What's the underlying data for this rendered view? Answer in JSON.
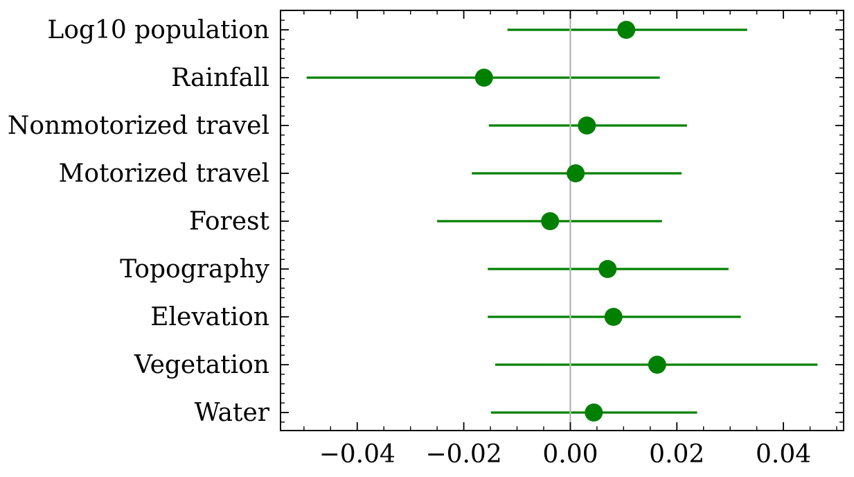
{
  "chart_data": {
    "type": "forest",
    "orientation": "horizontal",
    "title": "",
    "xlabel": "",
    "ylabel": "",
    "categories": [
      "Log10 population",
      "Rainfall",
      "Nonmotorized travel",
      "Motorized travel",
      "Forest",
      "Topography",
      "Elevation",
      "Vegetation",
      "Water"
    ],
    "estimates": [
      0.0105,
      -0.0162,
      0.0031,
      0.001,
      -0.0038,
      0.007,
      0.0081,
      0.0163,
      0.0044
    ],
    "ci_lower": [
      -0.0118,
      -0.0495,
      -0.0153,
      -0.0185,
      -0.025,
      -0.0155,
      -0.0155,
      -0.0141,
      -0.0149
    ],
    "ci_upper": [
      0.0332,
      0.0168,
      0.0219,
      0.0209,
      0.0172,
      0.0297,
      0.032,
      0.0464,
      0.0238
    ],
    "xlim": [
      -0.0544,
      0.0513
    ],
    "xticks": [
      -0.04,
      -0.02,
      0.0,
      0.02,
      0.04
    ],
    "xtick_labels": [
      "−0.04",
      "−0.02",
      "0.00",
      "0.02",
      "0.04"
    ],
    "reference_line_x": 0.0,
    "grid": false,
    "legend": "none",
    "colors": {
      "series": "#008000",
      "reference_line": "#aaaaaa",
      "axes": "#000000"
    }
  }
}
